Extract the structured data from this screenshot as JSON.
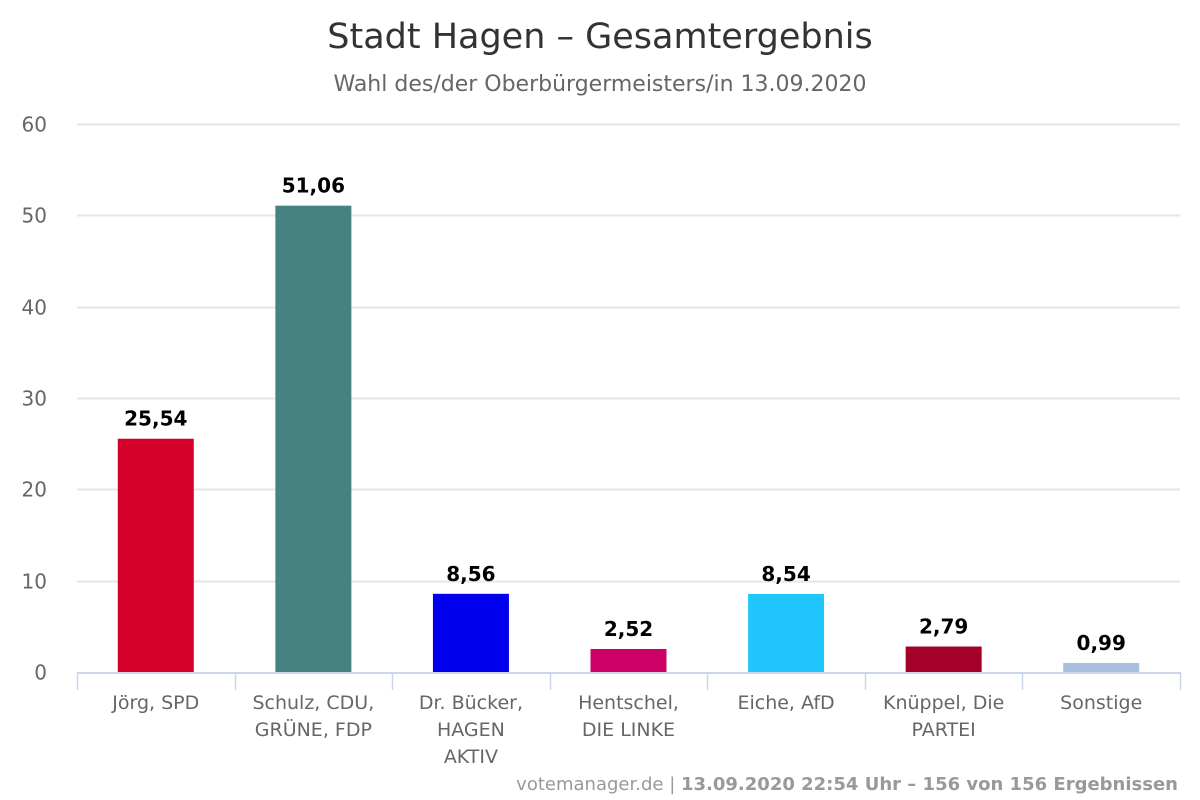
{
  "chart_data": {
    "type": "bar",
    "title": "Stadt Hagen – Gesamtergebnis",
    "subtitle": "Wahl des/der Oberbürgermeisters/in 13.09.2020",
    "xlabel": "",
    "ylabel": "",
    "ylim": [
      0,
      60
    ],
    "yticks": [
      0,
      10,
      20,
      30,
      40,
      50,
      60
    ],
    "grid": true,
    "legend": "none",
    "categories": [
      [
        "Jörg, SPD"
      ],
      [
        "Schulz, CDU,",
        "GRÜNE, FDP"
      ],
      [
        "Dr. Bücker,",
        "HAGEN",
        "AKTIV"
      ],
      [
        "Hentschel,",
        "DIE LINKE"
      ],
      [
        "Eiche, AfD"
      ],
      [
        "Knüppel, Die",
        "PARTEI"
      ],
      [
        "Sonstige"
      ]
    ],
    "values": [
      25.54,
      51.06,
      8.56,
      2.52,
      8.54,
      2.79,
      0.99
    ],
    "data_labels": [
      "25,54",
      "51,06",
      "8,56",
      "2,52",
      "8,54",
      "2,79",
      "0,99"
    ],
    "colors": [
      "#d5002a",
      "#468280",
      "#0000ee",
      "#cc0066",
      "#22c6ff",
      "#a3002a",
      "#a9bfe0"
    ],
    "credits": {
      "site": "votemanager.de",
      "separator": "|",
      "detail": "13.09.2020 22:54 Uhr – 156 von 156 Ergebnissen"
    }
  },
  "colors": {
    "grid": "#e6e6e6",
    "axis": "#ccd6eb",
    "title": "#333333",
    "subtitle": "#666666"
  }
}
